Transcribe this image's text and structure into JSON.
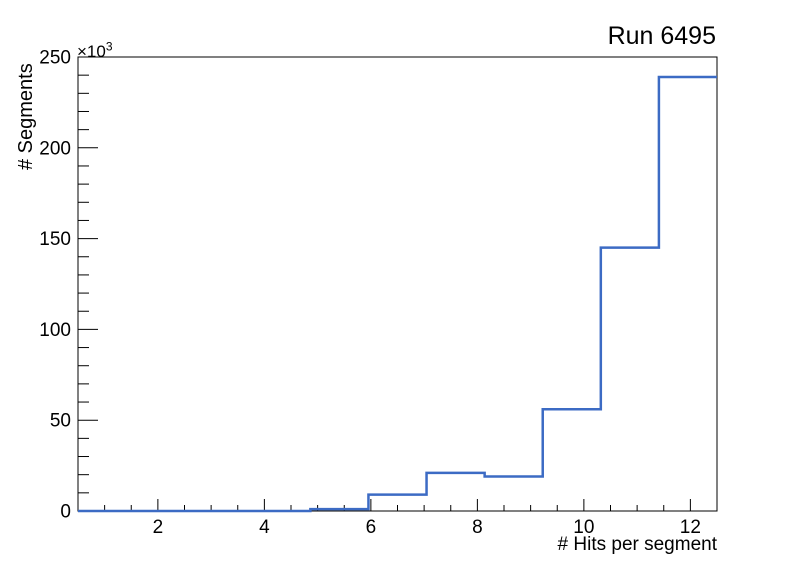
{
  "chart_data": {
    "type": "step-histogram",
    "title": "Run 6495",
    "xlabel": "# Hits per segment",
    "ylabel": "# Segments",
    "xlim": [
      0.5,
      12.5
    ],
    "ylim": [
      0,
      250000
    ],
    "y_axis_multiplier": {
      "base": "×10",
      "power": "3"
    },
    "bin_edges": [
      0.5,
      1.5909,
      2.6818,
      3.7727,
      4.8636,
      5.9545,
      7.0455,
      8.1364,
      9.2273,
      10.3182,
      11.4091,
      12.5
    ],
    "counts": [
      0,
      0,
      0,
      0,
      1000,
      9000,
      21000,
      19000,
      56000,
      145000,
      239000
    ],
    "x_ticks": {
      "major": [
        2,
        4,
        6,
        8,
        10,
        12
      ],
      "major_labels": [
        "2",
        "4",
        "6",
        "8",
        "10",
        "12"
      ],
      "minor_step": 0.5
    },
    "y_ticks": {
      "major": [
        0,
        50000,
        100000,
        150000,
        200000,
        250000
      ],
      "major_labels": [
        "0",
        "50",
        "100",
        "150",
        "200",
        "250"
      ],
      "minor_step": 10000
    },
    "line_color": "#3c6bc4",
    "axis_color": "#000000",
    "background_color": "#ffffff",
    "grid": false,
    "legend": null
  }
}
